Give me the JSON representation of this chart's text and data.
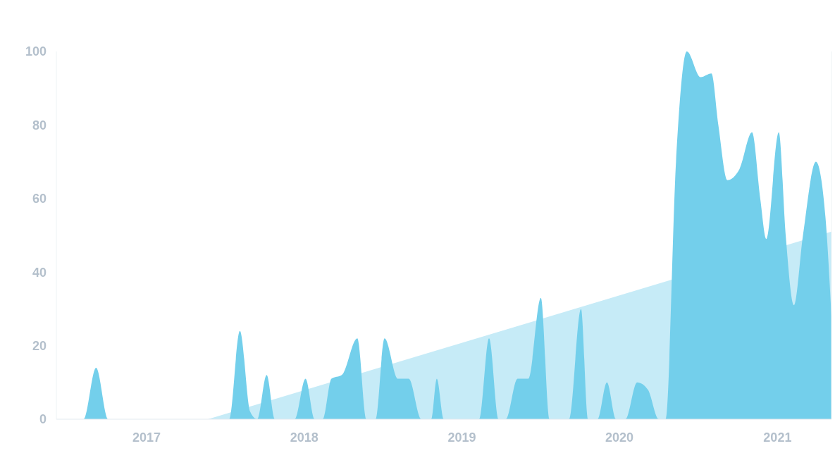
{
  "chart_data": {
    "type": "area",
    "xlim": [
      "2016-06-06",
      "2021-05-06"
    ],
    "ylim": [
      0,
      100
    ],
    "yticks": [
      0,
      20,
      40,
      60,
      80,
      100
    ],
    "xticks": [
      {
        "value": "2017-01-01",
        "label": "2017"
      },
      {
        "value": "2018-01-01",
        "label": "2018"
      },
      {
        "value": "2019-01-01",
        "label": "2019"
      },
      {
        "value": "2020-01-01",
        "label": "2020"
      },
      {
        "value": "2021-01-01",
        "label": "2021"
      }
    ],
    "series": [
      {
        "color": "#c6ebf7",
        "x": [
          "2017-05-23",
          "2021-05-06"
        ],
        "values": [
          0,
          51
        ]
      },
      {
        "color": "#73cfeb",
        "x": [
          "2016-06-06",
          "2016-08-08",
          "2016-09-06",
          "2016-10-04",
          "2017-07-11",
          "2017-08-05",
          "2017-08-29",
          "2017-09-14",
          "2017-10-06",
          "2017-10-25",
          "2017-12-10",
          "2018-01-04",
          "2018-01-25",
          "2018-02-13",
          "2018-03-05",
          "2018-03-29",
          "2018-05-04",
          "2018-05-25",
          "2018-06-15",
          "2018-07-06",
          "2018-08-06",
          "2018-08-31",
          "2018-09-29",
          "2018-10-22",
          "2018-11-04",
          "2018-11-20",
          "2019-02-10",
          "2019-03-05",
          "2019-03-27",
          "2019-04-13",
          "2019-05-10",
          "2019-06-04",
          "2019-07-03",
          "2019-07-23",
          "2019-09-06",
          "2019-10-04",
          "2019-10-20",
          "2019-11-11",
          "2019-12-03",
          "2019-12-24",
          "2020-01-15",
          "2020-02-11",
          "2020-03-07",
          "2020-04-01",
          "2020-04-17",
          "2020-05-11",
          "2020-06-05",
          "2020-07-07",
          "2020-08-01",
          "2020-08-17",
          "2020-09-07",
          "2020-10-05",
          "2020-11-03",
          "2020-11-22",
          "2020-12-06",
          "2021-01-04",
          "2021-01-20",
          "2021-02-08",
          "2021-03-01",
          "2021-03-31",
          "2021-04-22",
          "2021-05-06"
        ],
        "values": [
          0,
          0,
          14,
          0,
          0,
          24,
          2,
          0,
          12,
          0,
          0,
          11,
          0,
          0,
          11,
          12,
          22,
          0,
          0,
          22,
          11,
          11,
          0,
          0,
          11,
          0,
          0,
          22,
          0,
          0,
          11,
          11,
          33,
          0,
          0,
          30,
          0,
          0,
          10,
          0,
          0,
          10,
          8,
          0,
          0,
          70,
          100,
          93,
          94,
          80,
          65,
          68,
          78,
          60,
          49,
          78,
          50,
          31,
          50,
          70,
          55,
          28
        ]
      }
    ]
  }
}
